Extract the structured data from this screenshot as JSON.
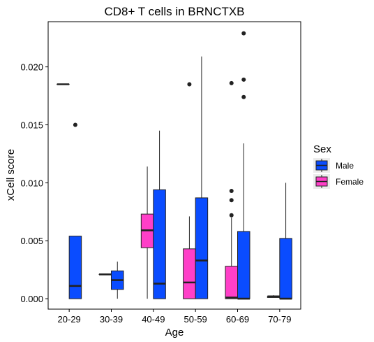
{
  "chart_data": {
    "type": "box",
    "title": "CD8+ T cells in BRNCTXB",
    "xlabel": "Age",
    "ylabel": "xCell score",
    "categories": [
      "20-29",
      "30-39",
      "40-49",
      "50-59",
      "60-69",
      "70-79"
    ],
    "ylim": [
      -0.0009,
      0.0239
    ],
    "yticks": [
      0.0,
      0.005,
      0.01,
      0.015,
      0.02
    ],
    "ytick_labels": [
      "0.000",
      "0.005",
      "0.010",
      "0.015",
      "0.020"
    ],
    "grid": false,
    "legend": {
      "title": "Sex",
      "placement": "right",
      "entries": [
        {
          "label": "Male",
          "color": "#0a4cff"
        },
        {
          "label": "Female",
          "color": "#ff3fc8"
        }
      ]
    },
    "series": [
      {
        "name": "Female",
        "color": "#ff3fc8",
        "boxes": [
          {
            "category": "20-29",
            "min": 0.0185,
            "q1": 0.0185,
            "median": 0.0185,
            "q3": 0.0185,
            "max": 0.0185,
            "outliers": []
          },
          {
            "category": "30-39",
            "min": 0.0021,
            "q1": 0.0021,
            "median": 0.0021,
            "q3": 0.0021,
            "max": 0.0021,
            "outliers": []
          },
          {
            "category": "40-49",
            "min": 0.0,
            "q1": 0.0044,
            "median": 0.0059,
            "q3": 0.0073,
            "max": 0.0114,
            "outliers": []
          },
          {
            "category": "50-59",
            "min": 0.0,
            "q1": 0.0,
            "median": 0.0014,
            "q3": 0.0043,
            "max": 0.0071,
            "outliers": [
              0.0185
            ]
          },
          {
            "category": "60-69",
            "min": 0.0,
            "q1": 0.0,
            "median": 0.0001,
            "q3": 0.0028,
            "max": 0.007,
            "outliers": [
              0.0072,
              0.0085,
              0.0093,
              0.0186
            ]
          },
          {
            "category": "70-79",
            "min": 0.0001,
            "q1": 0.0001,
            "median": 0.0002,
            "q3": 0.0002,
            "max": 0.0003,
            "outliers": []
          }
        ]
      },
      {
        "name": "Male",
        "color": "#0a4cff",
        "boxes": [
          {
            "category": "20-29",
            "min": 0.0,
            "q1": 0.0,
            "median": 0.0011,
            "q3": 0.0054,
            "max": 0.0054,
            "outliers": [
              0.015
            ]
          },
          {
            "category": "30-39",
            "min": 0.0,
            "q1": 0.0008,
            "median": 0.0016,
            "q3": 0.0024,
            "max": 0.0032,
            "outliers": []
          },
          {
            "category": "40-49",
            "min": 0.0,
            "q1": 0.0,
            "median": 0.0013,
            "q3": 0.0094,
            "max": 0.0145,
            "outliers": []
          },
          {
            "category": "50-59",
            "min": 0.0,
            "q1": 0.0,
            "median": 0.0033,
            "q3": 0.0087,
            "max": 0.0209,
            "outliers": []
          },
          {
            "category": "60-69",
            "min": 0.0,
            "q1": 0.0,
            "median": 0.0,
            "q3": 0.0058,
            "max": 0.0134,
            "outliers": [
              0.0174,
              0.0189,
              0.0229
            ]
          },
          {
            "category": "70-79",
            "min": 0.0,
            "q1": 0.0,
            "median": 0.0,
            "q3": 0.0052,
            "max": 0.01,
            "outliers": []
          }
        ]
      }
    ]
  }
}
